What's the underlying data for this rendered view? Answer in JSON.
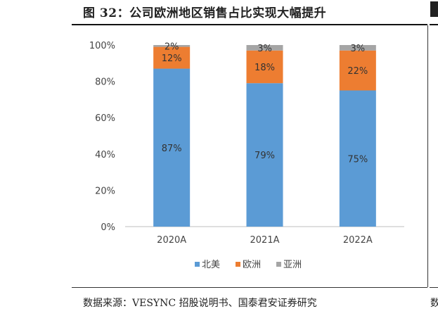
{
  "figure_title": "图 32：公司欧洲地区销售占比实现大幅提升",
  "source_note": "数据来源：VESYNC 招股说明书、国泰君安证券研究",
  "right_fragment_char": "数",
  "colors": {
    "north_america": "#5B9BD5",
    "europe": "#ED7D31",
    "asia": "#A5A5A5"
  },
  "chart_data": {
    "type": "bar",
    "stacked": true,
    "categories": [
      "2020A",
      "2021A",
      "2022A"
    ],
    "series": [
      {
        "name": "北美",
        "values": [
          87,
          79,
          75
        ],
        "labels": [
          "87%",
          "79%",
          "75%"
        ]
      },
      {
        "name": "欧洲",
        "values": [
          12,
          18,
          22
        ],
        "labels": [
          "12%",
          "18%",
          "22%"
        ]
      },
      {
        "name": "亚洲",
        "values": [
          2,
          3,
          3
        ],
        "labels": [
          "2%",
          "3%",
          "3%"
        ]
      }
    ],
    "ylim": [
      0,
      100
    ],
    "yticks": [
      "0%",
      "20%",
      "40%",
      "60%",
      "80%",
      "100%"
    ],
    "ytick_values": [
      0,
      20,
      40,
      60,
      80,
      100
    ],
    "legend_position": "bottom",
    "title": "",
    "xlabel": "",
    "ylabel": ""
  }
}
